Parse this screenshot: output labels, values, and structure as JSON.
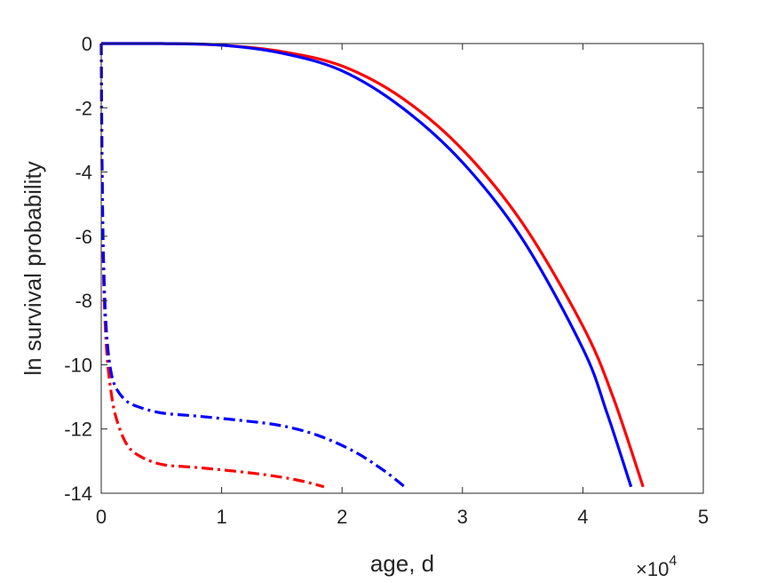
{
  "chart_data": {
    "type": "line",
    "title": "",
    "xlabel": "age, d",
    "ylabel": "ln survival probability",
    "x_multiplier": {
      "prefix": "×10",
      "exponent": "4"
    },
    "xlim": [
      0,
      50000
    ],
    "ylim": [
      -14,
      0
    ],
    "xticks": [
      0,
      10000,
      20000,
      30000,
      40000,
      50000
    ],
    "xtick_labels": [
      "0",
      "1",
      "2",
      "3",
      "4",
      "5"
    ],
    "yticks": [
      0,
      -2,
      -4,
      -6,
      -8,
      -10,
      -12,
      -14
    ],
    "ytick_labels": [
      "0",
      "-2",
      "-4",
      "-6",
      "-8",
      "-10",
      "-12",
      "-14"
    ],
    "grid": false,
    "box": true,
    "series": [
      {
        "color": "#ff0000",
        "style": "solid",
        "x": [
          0,
          5000,
          10000,
          15000,
          20000,
          25000,
          30000,
          35000,
          40000,
          42500,
          45000
        ],
        "y": [
          0,
          0,
          -0.05,
          -0.25,
          -0.7,
          -1.7,
          -3.3,
          -5.6,
          -8.8,
          -11.0,
          -13.8
        ]
      },
      {
        "color": "#0000ff",
        "style": "solid",
        "x": [
          0,
          5000,
          10000,
          15000,
          20000,
          25000,
          30000,
          35000,
          40000,
          42000,
          44000
        ],
        "y": [
          0,
          0,
          -0.05,
          -0.3,
          -0.85,
          -2.0,
          -3.7,
          -6.1,
          -9.5,
          -11.5,
          -13.8
        ]
      },
      {
        "color": "#ff0000",
        "style": "dashdot",
        "x": [
          0,
          50,
          150,
          300,
          500,
          800,
          1200,
          2000,
          3000,
          5000,
          8000,
          12000,
          15000,
          17000,
          18500
        ],
        "y": [
          0,
          -3,
          -6.5,
          -8.5,
          -9.8,
          -10.8,
          -11.6,
          -12.4,
          -12.8,
          -13.1,
          -13.2,
          -13.35,
          -13.5,
          -13.65,
          -13.8
        ]
      },
      {
        "color": "#0000ff",
        "style": "dashdot",
        "x": [
          0,
          50,
          150,
          300,
          500,
          800,
          1200,
          2000,
          3000,
          5000,
          8000,
          12000,
          15000,
          18000,
          21000,
          23500,
          25200
        ],
        "y": [
          0,
          -3,
          -6,
          -8,
          -9.3,
          -10.2,
          -10.7,
          -11.1,
          -11.3,
          -11.5,
          -11.6,
          -11.75,
          -11.9,
          -12.2,
          -12.7,
          -13.3,
          -13.8
        ]
      }
    ]
  }
}
